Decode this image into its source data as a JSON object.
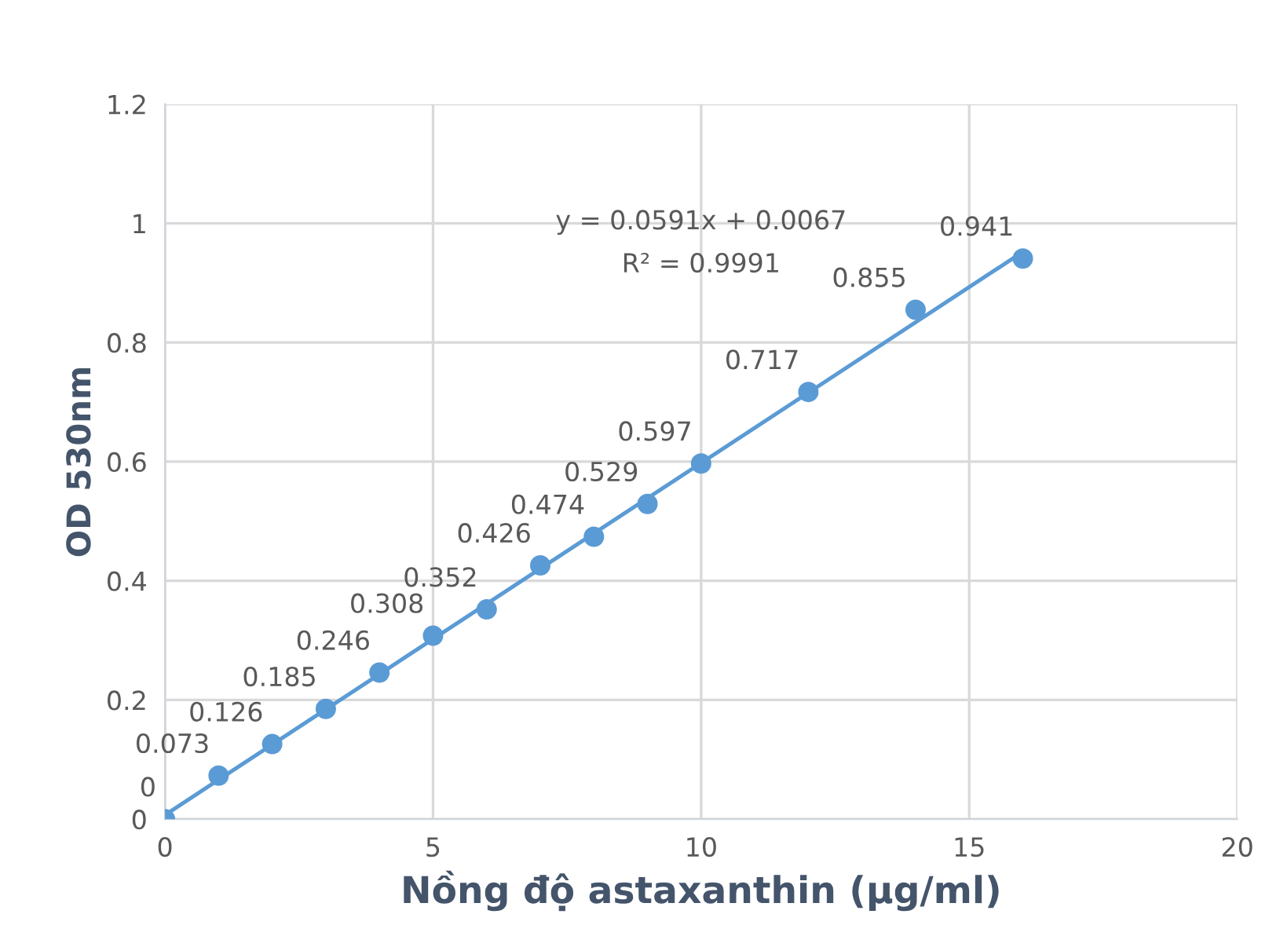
{
  "chart_data": {
    "type": "scatter",
    "xlabel": "Nồng độ astaxanthin (µg/ml)",
    "ylabel": "OD 530nm",
    "xlim": [
      0,
      20
    ],
    "xticks": [
      0,
      5,
      10,
      15,
      20
    ],
    "ylim": [
      0,
      1.2
    ],
    "yticks": [
      0,
      0.2,
      0.4,
      0.6,
      0.8,
      1,
      1.2
    ],
    "grid": true,
    "annotations": [
      "y = 0.0591x + 0.0067",
      "R² = 0.9991"
    ],
    "series": [
      {
        "color": "#5b9bd5",
        "marker": "circle",
        "data_labels": true,
        "x": [
          0,
          1,
          2,
          3,
          4,
          5,
          6,
          7,
          8,
          9,
          10,
          12,
          14,
          16
        ],
        "values": [
          0,
          0.073,
          0.126,
          0.185,
          0.246,
          0.308,
          0.352,
          0.426,
          0.474,
          0.529,
          0.597,
          0.717,
          0.855,
          0.941
        ]
      },
      {
        "type": "line",
        "color": "#5b9bd5",
        "marker": "none",
        "line_style": "solid",
        "x": [
          0,
          16
        ],
        "values": [
          0.007,
          0.952
        ]
      }
    ]
  }
}
